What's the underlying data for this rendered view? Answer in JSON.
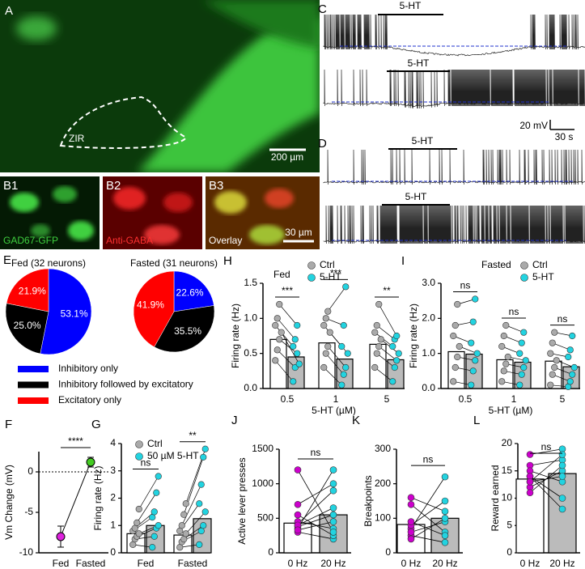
{
  "image_panels": [
    {
      "label": "A",
      "annotation": "ZIR",
      "scale_bar": "200 µm"
    },
    {
      "label": "B1",
      "caption": "GAD67-GFP"
    },
    {
      "label": "B2",
      "caption": "Anti-GABA"
    },
    {
      "label": "B3",
      "caption": "Overlay",
      "scale_bar": "30 µm"
    }
  ],
  "trace_panels": [
    {
      "label": "C",
      "drug_labels": [
        "5-HT",
        "5-HT"
      ],
      "scale_bar_voltage": "20 mV",
      "scale_bar_time": "30 s"
    },
    {
      "label": "D",
      "drug_labels": [
        "5-HT",
        "5-HT"
      ]
    }
  ],
  "chart_data": [
    {
      "type": "pie",
      "panel_label": "E",
      "title": "Fed (32 neurons)",
      "categories": [
        "Inhibitory only",
        "Inhibitory followed by excitatory",
        "Excitatory only"
      ],
      "values": [
        53.1,
        25.0,
        21.9
      ],
      "value_labels": [
        "53.1%",
        "25.0%",
        "21.9%"
      ],
      "colors": [
        "#0000ff",
        "#000000",
        "#ff0000"
      ]
    },
    {
      "type": "pie",
      "title": "Fasted (31 neurons)",
      "values": [
        22.6,
        35.5,
        41.9
      ],
      "value_labels": [
        "22.6%",
        "35.5%",
        "41.9%"
      ],
      "colors": [
        "#0000ff",
        "#000000",
        "#ff0000"
      ]
    },
    {
      "type": "errorbar",
      "panel_label": "F",
      "ylabel": "Vm Change (mV)",
      "categories": [
        "Fed",
        "Fasted"
      ],
      "values": [
        -8,
        1.2
      ],
      "errors": [
        1.3,
        0.6
      ],
      "colors": [
        "#dd22dd",
        "#44cc22"
      ],
      "ylim": [
        -10,
        2.5
      ],
      "yticks": [
        -10,
        -5,
        0
      ],
      "zero_line": true,
      "annotation": "****"
    },
    {
      "type": "paired_dot_bar",
      "panel_label": "G",
      "ylabel": "Firing rate (Hz)",
      "categories": [
        "Fed",
        "Fasted"
      ],
      "ylim": [
        0,
        4
      ],
      "yticks": [
        0,
        1,
        2,
        3,
        4
      ],
      "annotations": [
        "ns",
        "**"
      ],
      "series": [
        {
          "name": "Ctrl",
          "color": "#aaaaaa",
          "bar_color": "#ffffff",
          "values": [
            0.7,
            0.65
          ],
          "points": [
            [
              0.3,
              0.5,
              0.6,
              0.7,
              0.8,
              0.9,
              1.1,
              1.6
            ],
            [
              0.2,
              0.4,
              0.5,
              0.7,
              0.8,
              1.0,
              1.4,
              1.8
            ]
          ]
        },
        {
          "name": "50 µM 5-HT",
          "color": "#22d3e0",
          "bar_color": "#bbbbbb",
          "values": [
            1.0,
            1.25
          ],
          "points": [
            [
              0.2,
              0.6,
              0.9,
              1.0,
              1.3,
              1.5,
              2.2,
              2.8
            ],
            [
              0.3,
              0.8,
              1.0,
              1.5,
              1.8,
              2.5,
              3.5,
              3.8
            ]
          ]
        }
      ]
    },
    {
      "type": "paired_dot_bar",
      "panel_label": "H",
      "tag": "Fed",
      "ylabel": "Firing rate (Hz)",
      "xlabel": "5-HT (µM)",
      "categories": [
        "0.5",
        "1",
        "5"
      ],
      "ylim": [
        0,
        1.5
      ],
      "yticks": [
        {
          "value": 0,
          "label": "0.0"
        },
        0.5,
        {
          "value": 1,
          "label": "1.0"
        },
        1.5
      ],
      "annotations": [
        "***",
        "***",
        "**"
      ],
      "series": [
        {
          "name": "Ctrl",
          "color": "#aaaaaa",
          "bar_color": "#ffffff",
          "values": [
            0.7,
            0.65,
            0.63
          ],
          "points": [
            [
              0.4,
              0.55,
              0.7,
              0.8,
              0.9,
              1.0,
              1.2
            ],
            [
              0.3,
              0.5,
              0.6,
              0.8,
              0.9,
              1.0,
              1.1
            ],
            [
              0.3,
              0.5,
              0.6,
              0.7,
              0.8,
              0.9,
              1.2
            ]
          ]
        },
        {
          "name": "5-HT",
          "color": "#22d3e0",
          "bar_color": "#bbbbbb",
          "values": [
            0.45,
            0.42,
            0.41
          ],
          "points": [
            [
              0.1,
              0.3,
              0.5,
              0.35,
              0.6,
              0.7,
              0.9
            ],
            [
              0.05,
              0.2,
              0.3,
              0.5,
              0.6,
              0.9,
              1.45
            ],
            [
              0.1,
              0.3,
              0.4,
              0.5,
              0.6,
              0.7,
              0.75
            ]
          ]
        }
      ]
    },
    {
      "type": "paired_dot_bar",
      "panel_label": "I",
      "tag": "Fasted",
      "ylabel": "Firing rate (Hz)",
      "xlabel": "5-HT (µM)",
      "categories": [
        "0.5",
        "1",
        "5"
      ],
      "ylim": [
        0,
        3
      ],
      "yticks": [
        {
          "value": 0,
          "label": "0.0"
        },
        {
          "value": 1,
          "label": "1.0"
        },
        {
          "value": 2,
          "label": "2.0"
        },
        {
          "value": 3,
          "label": "3.0"
        }
      ],
      "annotations": [
        "ns",
        "ns",
        "ns"
      ],
      "series": [
        {
          "name": "Ctrl",
          "color": "#aaaaaa",
          "bar_color": "#ffffff",
          "values": [
            1.05,
            0.82,
            0.78
          ],
          "points": [
            [
              0.2,
              0.6,
              0.9,
              1.2,
              1.5,
              1.8,
              2.4
            ],
            [
              0.2,
              0.5,
              0.7,
              0.9,
              1.2,
              1.5,
              1.8
            ],
            [
              0.1,
              0.4,
              0.6,
              0.8,
              1.0,
              1.3,
              1.6
            ]
          ]
        },
        {
          "name": "5-HT",
          "color": "#22d3e0",
          "bar_color": "#bbbbbb",
          "values": [
            0.98,
            0.75,
            0.62
          ],
          "points": [
            [
              0.1,
              0.5,
              0.8,
              1.0,
              1.3,
              1.9,
              2.55
            ],
            [
              0.1,
              0.4,
              0.6,
              0.8,
              1.0,
              1.3,
              1.6
            ],
            [
              0.05,
              0.2,
              0.4,
              0.6,
              0.9,
              1.1,
              1.5
            ]
          ]
        }
      ]
    },
    {
      "type": "paired_bar",
      "panel_label": "J",
      "ylabel": "Active lever presses",
      "categories": [
        "0 Hz",
        "20 Hz"
      ],
      "values": [
        430,
        550
      ],
      "bar_colors": [
        "#ffffff",
        "#bbbbbb"
      ],
      "point_colors": [
        "#cc00cc",
        "#22d3e0"
      ],
      "ylim": [
        0,
        1500
      ],
      "yticks": [
        0,
        500,
        1000,
        1500
      ],
      "annotation": "ns",
      "pairs": [
        [
          300,
          200
        ],
        [
          350,
          1200
        ],
        [
          380,
          550
        ],
        [
          420,
          900
        ],
        [
          450,
          350
        ],
        [
          550,
          250
        ],
        [
          700,
          1000
        ],
        [
          1200,
          300
        ],
        [
          400,
          650
        ],
        [
          330,
          450
        ]
      ]
    },
    {
      "type": "paired_bar",
      "panel_label": "K",
      "ylabel": "Breakpoints",
      "categories": [
        "0 Hz",
        "20 Hz"
      ],
      "values": [
        82,
        100
      ],
      "bar_colors": [
        "#ffffff",
        "#bbbbbb"
      ],
      "point_colors": [
        "#cc00cc",
        "#22d3e0"
      ],
      "ylim": [
        0,
        300
      ],
      "yticks": [
        0,
        100,
        200,
        300
      ],
      "annotation": "ns",
      "pairs": [
        [
          50,
          30
        ],
        [
          70,
          220
        ],
        [
          80,
          150
        ],
        [
          140,
          60
        ],
        [
          160,
          120
        ],
        [
          60,
          90
        ],
        [
          40,
          100
        ],
        [
          90,
          50
        ]
      ]
    },
    {
      "type": "paired_bar",
      "panel_label": "L",
      "ylabel": "Reward earned",
      "categories": [
        "0 Hz",
        "20 Hz"
      ],
      "values": [
        13.5,
        14.5
      ],
      "bar_colors": [
        "#ffffff",
        "#bbbbbb"
      ],
      "point_colors": [
        "#cc00cc",
        "#22d3e0"
      ],
      "ylim": [
        0,
        20
      ],
      "yticks": [
        0,
        5,
        10,
        15,
        20
      ],
      "annotation": "ns",
      "pairs": [
        [
          18,
          19
        ],
        [
          16,
          17
        ],
        [
          14,
          10
        ],
        [
          12,
          15
        ],
        [
          13,
          18
        ],
        [
          15,
          13
        ],
        [
          11,
          16
        ],
        [
          14,
          8
        ],
        [
          13,
          14
        ]
      ]
    }
  ]
}
